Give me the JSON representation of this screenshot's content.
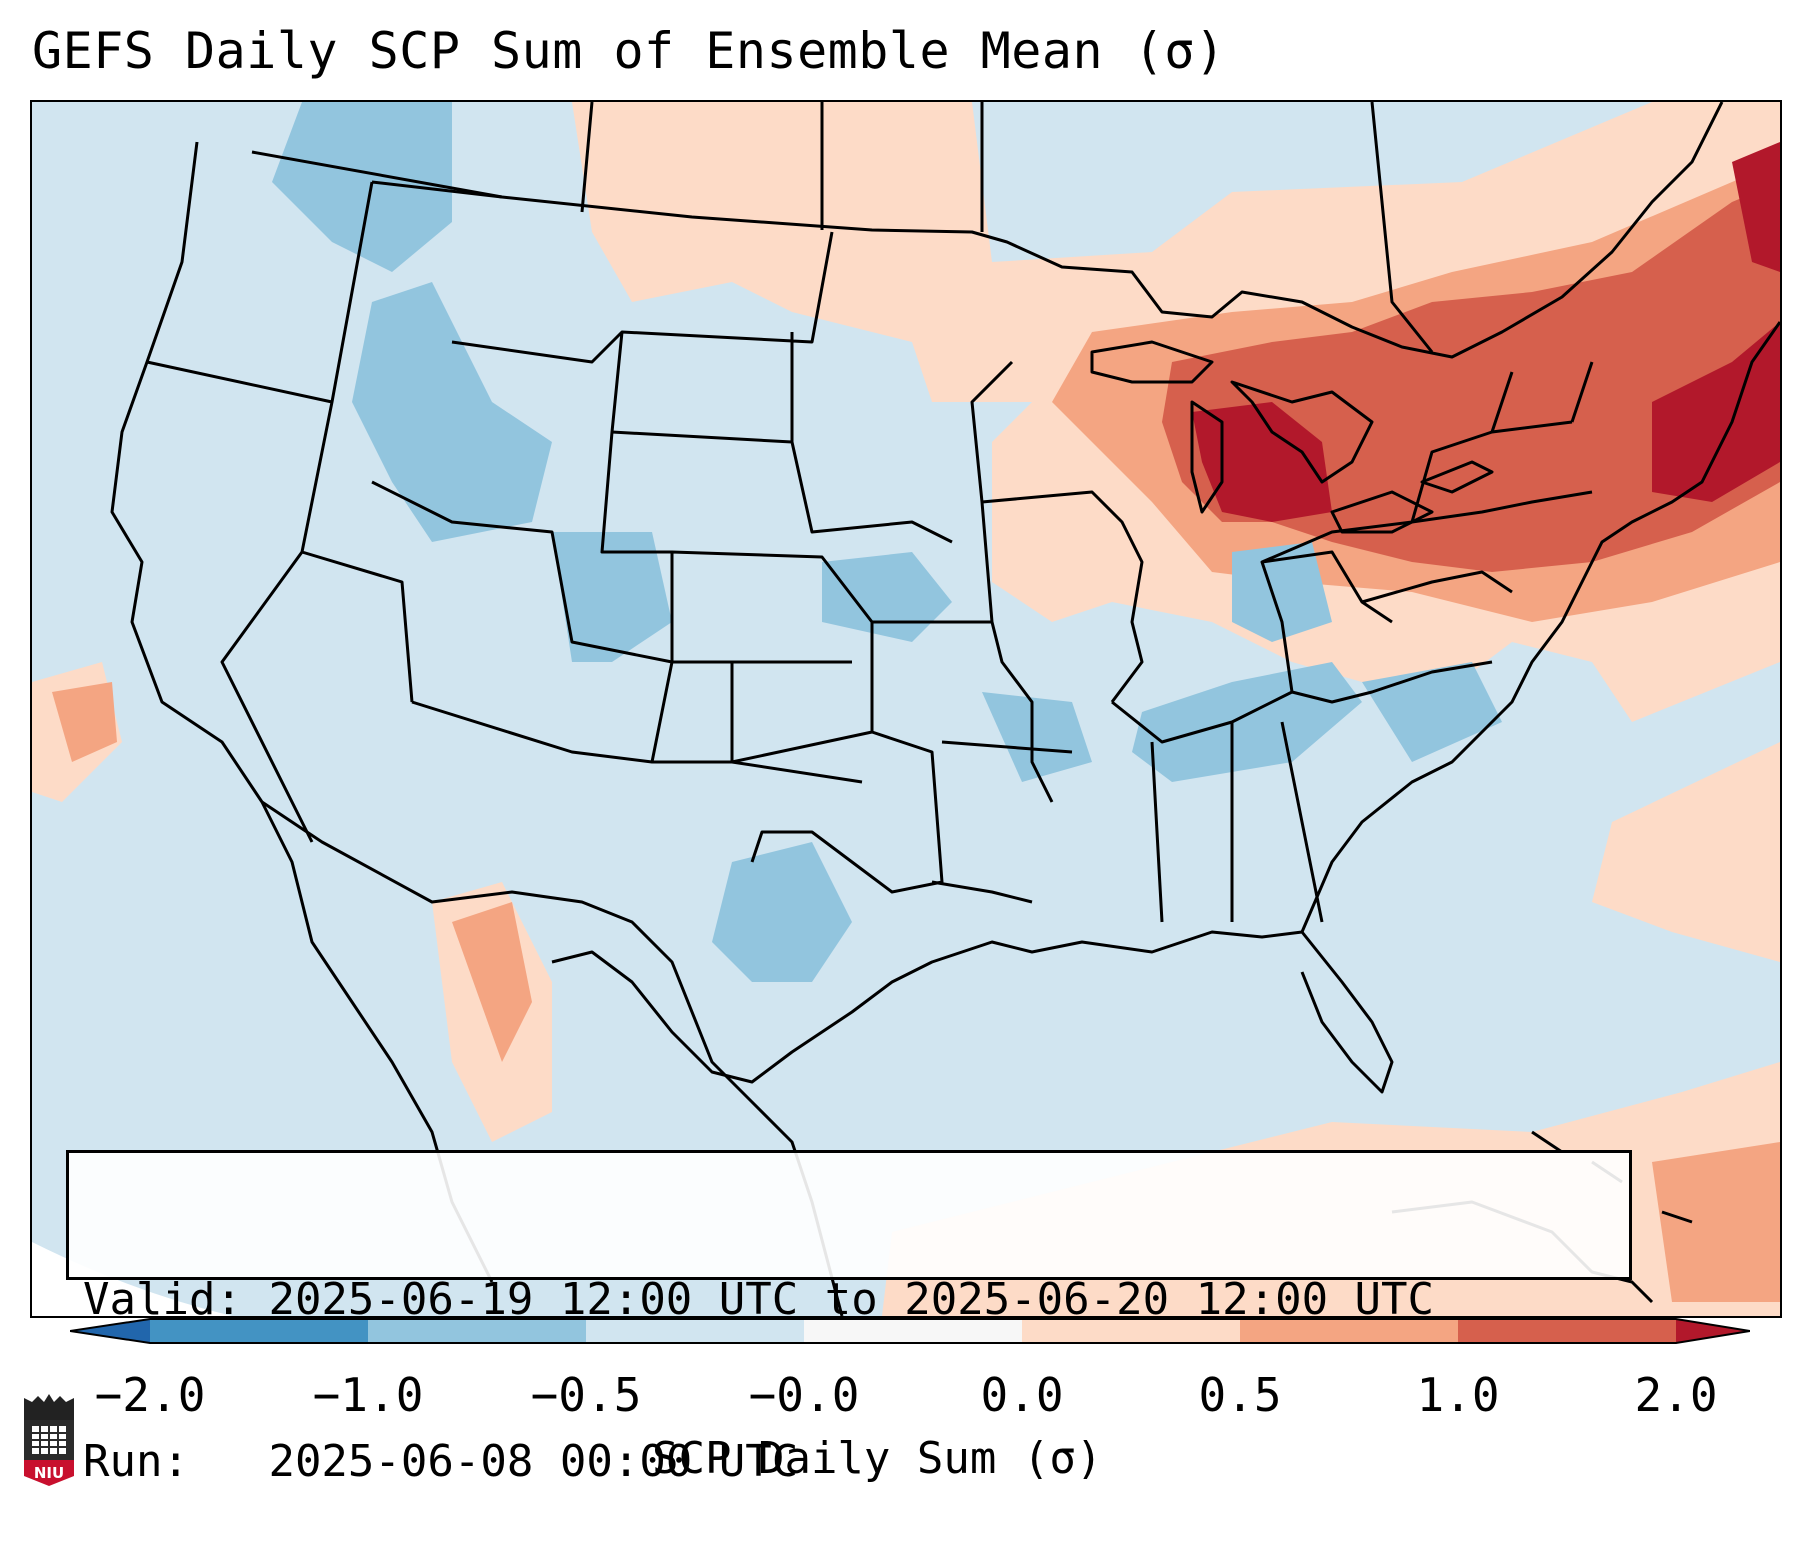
{
  "title": "GEFS Daily SCP Sum of Ensemble Mean (σ)",
  "info": {
    "valid_label": "Valid:",
    "valid_value": "2025-06-19 12:00 UTC to 2025-06-20 12:00 UTC",
    "run_label": "Run:",
    "run_value": "2025-06-08 00:00 UTC"
  },
  "colorbar": {
    "label": "SCP Daily Sum (σ)",
    "ticks": [
      "−2.0",
      "−1.0",
      "−0.5",
      "−0.0",
      "0.0",
      "0.5",
      "1.0",
      "2.0"
    ],
    "bin_colors": [
      "#4393c3",
      "#92c5de",
      "#d1e5f0",
      "#f7f7f7",
      "#fddbc7",
      "#f4a582",
      "#d6604d"
    ],
    "extend_min_color": "#2166ac",
    "extend_max_color": "#b2182b"
  },
  "logo": {
    "text": "NIU"
  },
  "map": {
    "region": "Contiguous United States",
    "background_anomaly_color": "#d1e5f0",
    "highlights": [
      "Strongest positive anomalies (>1σ) over Great Lakes, Ontario, New England and Northeast",
      "Negative anomalies (-0.5 to -1σ) over Idaho, Wyoming, Kansas, Tennessee Valley, West Texas"
    ]
  }
}
